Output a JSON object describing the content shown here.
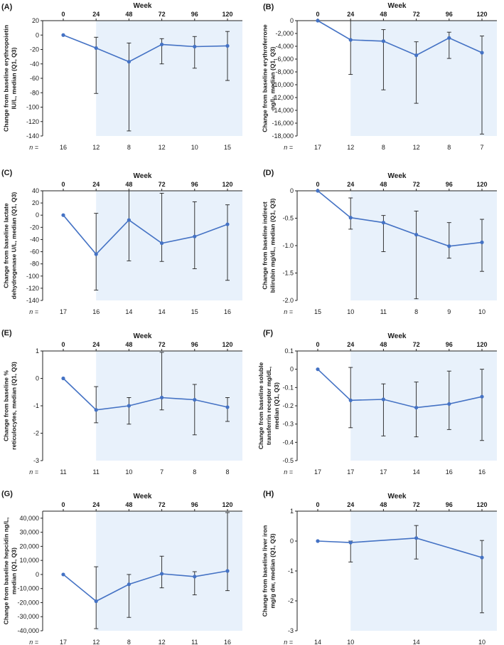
{
  "figure": {
    "x_axis_title": "Week",
    "n_label": "n =",
    "colors": {
      "line": "#4472c4",
      "shade": "#e8f1fb",
      "axis": "#222222",
      "error_bar": "#222222"
    }
  },
  "chart_data": [
    {
      "type": "line",
      "panel_label": "(A)",
      "xlabel": "Week",
      "ylabel_lines": [
        "Change from baseline erythropoietin",
        "IU/L, median (Q1, Q3)"
      ],
      "x": [
        0,
        24,
        48,
        72,
        96,
        120
      ],
      "x_tick_labels": [
        "0",
        "24",
        "48",
        "72",
        "96",
        "120"
      ],
      "y": [
        0,
        -18,
        -37,
        -13,
        -16,
        -15
      ],
      "q1": [
        0,
        -81,
        -133,
        -40,
        -46,
        -63
      ],
      "q3": [
        0,
        -3,
        -11,
        -5,
        -2,
        5
      ],
      "yticks": [
        20,
        0,
        -20,
        -40,
        -60,
        -80,
        -100,
        -120,
        -140
      ],
      "ytick_labels": [
        "20",
        "0",
        "-20",
        "-40",
        "-60",
        "-80",
        "-100",
        "-120",
        "-140"
      ],
      "ylim": [
        -140,
        20
      ],
      "n": [
        "16",
        "12",
        "8",
        "12",
        "10",
        "15"
      ],
      "shade_from_week": 24
    },
    {
      "type": "line",
      "panel_label": "(B)",
      "xlabel": "Week",
      "ylabel_lines": [
        "Change from baseline erythroferrone",
        "ng/L, median (Q1, Q3)"
      ],
      "x": [
        0,
        24,
        48,
        72,
        96,
        120
      ],
      "x_tick_labels": [
        "0",
        "24",
        "48",
        "72",
        "96",
        "120"
      ],
      "y": [
        0,
        -3000,
        -3200,
        -5400,
        -2700,
        -5000
      ],
      "q1": [
        0,
        -8400,
        -10800,
        -12900,
        -5900,
        -17700
      ],
      "q3": [
        0,
        0,
        -1400,
        -3300,
        -1800,
        -2400
      ],
      "yticks": [
        0,
        -2000,
        -4000,
        -6000,
        -8000,
        -10000,
        -12000,
        -14000,
        -16000,
        -18000
      ],
      "ytick_labels": [
        "0",
        "-2,000",
        "-4,000",
        "-6,000",
        "-8,000",
        "-10,000",
        "-12,000",
        "-14,000",
        "-16,000",
        "-18,000"
      ],
      "ylim": [
        -18000,
        0
      ],
      "n": [
        "17",
        "12",
        "8",
        "12",
        "8",
        "7"
      ],
      "shade_from_week": 24
    },
    {
      "type": "line",
      "panel_label": "(C)",
      "xlabel": "Week",
      "ylabel_lines": [
        "Change from baseline lactate",
        "dehydrogenase U/L, median (Q1, Q3)"
      ],
      "x": [
        0,
        24,
        48,
        72,
        96,
        120
      ],
      "x_tick_labels": [
        "0",
        "24",
        "48",
        "72",
        "96",
        "120"
      ],
      "y": [
        0,
        -64,
        -8,
        -46,
        -35,
        -15
      ],
      "q1": [
        0,
        -123,
        -75,
        -76,
        -88,
        -107
      ],
      "q3": [
        0,
        3,
        40,
        36,
        22,
        17
      ],
      "yticks": [
        40,
        20,
        0,
        -20,
        -40,
        -60,
        -80,
        -100,
        -120,
        -140
      ],
      "ytick_labels": [
        "40",
        "20",
        "0",
        "-20",
        "-40",
        "-60",
        "-80",
        "-100",
        "-120",
        "-140"
      ],
      "ylim": [
        -140,
        40
      ],
      "n": [
        "17",
        "16",
        "14",
        "14",
        "15",
        "16"
      ],
      "shade_from_week": 24
    },
    {
      "type": "line",
      "panel_label": "(D)",
      "xlabel": "Week",
      "ylabel_lines": [
        "Change from baseline indirect",
        "bilirubin mg/dL, median (Q1, Q3)"
      ],
      "x": [
        0,
        24,
        48,
        72,
        96,
        120
      ],
      "x_tick_labels": [
        "0",
        "24",
        "48",
        "72",
        "96",
        "120"
      ],
      "y": [
        0,
        -0.49,
        -0.58,
        -0.8,
        -1.01,
        -0.94
      ],
      "q1": [
        0,
        -0.7,
        -1.11,
        -1.97,
        -1.23,
        -1.47
      ],
      "q3": [
        0,
        -0.13,
        -0.45,
        -0.37,
        -0.58,
        -0.52
      ],
      "yticks": [
        0,
        -0.5,
        -1.0,
        -1.5,
        -2.0
      ],
      "ytick_labels": [
        "0",
        "-0.5",
        "-1.0",
        "-1.5",
        "-2.0"
      ],
      "ylim": [
        -2.0,
        0
      ],
      "n": [
        "15",
        "10",
        "11",
        "8",
        "9",
        "10"
      ],
      "shade_from_week": 24
    },
    {
      "type": "line",
      "panel_label": "(E)",
      "xlabel": "Week",
      "ylabel_lines": [
        "Change from baseline %",
        "reticulocytes, median (Q1, Q3)"
      ],
      "x": [
        0,
        24,
        48,
        72,
        96,
        120
      ],
      "x_tick_labels": [
        "0",
        "24",
        "48",
        "72",
        "96",
        "120"
      ],
      "y": [
        0,
        -1.15,
        -1.0,
        -0.7,
        -0.78,
        -1.05
      ],
      "q1": [
        0,
        -1.62,
        -1.67,
        -1.15,
        -2.06,
        -1.57
      ],
      "q3": [
        0,
        -0.3,
        -0.7,
        0.95,
        -0.22,
        -0.7
      ],
      "yticks": [
        1,
        0,
        -1,
        -2,
        -3
      ],
      "ytick_labels": [
        "1",
        "0",
        "-1",
        "-2",
        "-3"
      ],
      "ylim": [
        -3,
        1
      ],
      "n": [
        "11",
        "11",
        "10",
        "7",
        "8",
        "8"
      ],
      "shade_from_week": 24
    },
    {
      "type": "line",
      "panel_label": "(F)",
      "xlabel": "Week",
      "ylabel_lines": [
        "Change from baseline soluble",
        "transferrin receptor mg/dL,",
        "median (Q1, Q3)"
      ],
      "x": [
        0,
        24,
        48,
        72,
        96,
        120
      ],
      "x_tick_labels": [
        "0",
        "24",
        "48",
        "72",
        "96",
        "120"
      ],
      "y": [
        0,
        -0.17,
        -0.165,
        -0.21,
        -0.19,
        -0.15
      ],
      "q1": [
        0,
        -0.32,
        -0.365,
        -0.37,
        -0.33,
        -0.39
      ],
      "q3": [
        0,
        0.01,
        -0.08,
        -0.07,
        -0.01,
        0.0
      ],
      "yticks": [
        0.1,
        0,
        -0.1,
        -0.2,
        -0.3,
        -0.4,
        -0.5
      ],
      "ytick_labels": [
        "0.1",
        "0",
        "-0.1",
        "-0.2",
        "-0.3",
        "-0.4",
        "-0.5"
      ],
      "ylim": [
        -0.5,
        0.1
      ],
      "n": [
        "17",
        "17",
        "17",
        "14",
        "16",
        "16"
      ],
      "shade_from_week": 24
    },
    {
      "type": "line",
      "panel_label": "(G)",
      "xlabel": "Week",
      "ylabel_lines": [
        "Change from baseline hepcidin ng/L,",
        "median (Q1, Q3)"
      ],
      "x": [
        0,
        24,
        48,
        72,
        96,
        120
      ],
      "x_tick_labels": [
        "0",
        "24",
        "48",
        "72",
        "96",
        "120"
      ],
      "y": [
        0,
        -19000,
        -7000,
        500,
        -1500,
        2500
      ],
      "q1": [
        0,
        -38500,
        -30500,
        -9500,
        -14500,
        -11500
      ],
      "q3": [
        0,
        5500,
        0,
        13000,
        2000,
        44000
      ],
      "yticks": [
        40000,
        30000,
        20000,
        10000,
        0,
        -10000,
        -20000,
        -30000,
        -40000
      ],
      "ytick_labels": [
        "40,000",
        "30,000",
        "20,000",
        "10,000",
        "0",
        "-10,000",
        "-20,000",
        "-30,000",
        "-40,000"
      ],
      "ylim": [
        -40000,
        45000
      ],
      "n": [
        "17",
        "12",
        "8",
        "12",
        "11",
        "16"
      ],
      "shade_from_week": 24
    },
    {
      "type": "line",
      "panel_label": "(H)",
      "xlabel": "Week",
      "ylabel_lines": [
        "Change from baseline liver iron",
        "mg/g dw, median (Q1, Q3)"
      ],
      "x": [
        0,
        24,
        72,
        120
      ],
      "x_tick_values": [
        0,
        24,
        48,
        72,
        96,
        120
      ],
      "x_tick_labels": [
        "0",
        "24",
        "48",
        "72",
        "96",
        "120"
      ],
      "y": [
        0,
        -0.05,
        0.1,
        -0.55
      ],
      "q1": [
        0,
        -0.7,
        -0.6,
        -2.4
      ],
      "q3": [
        0,
        0,
        0.52,
        0.02
      ],
      "yticks": [
        1,
        0,
        -1,
        -2,
        -3
      ],
      "ytick_labels": [
        "1",
        "0",
        "-1",
        "-2",
        "-3"
      ],
      "ylim": [
        -3,
        1
      ],
      "n": [
        "14",
        "10",
        "14",
        "10"
      ],
      "shade_from_week": 24
    }
  ]
}
